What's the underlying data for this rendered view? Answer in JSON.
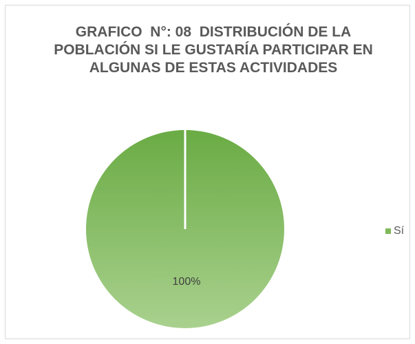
{
  "chart_data": {
    "type": "pie",
    "title": "GRAFICO  N°: 08  DISTRIBUCIÓN DE LA POBLACIÓN SI LE GUSTARÍA PARTICIPAR EN ALGUNAS DE ESTAS ACTIVIDADES",
    "categories": [
      "Sí"
    ],
    "values": [
      100
    ],
    "value_labels": [
      "100%"
    ],
    "colors": [
      "#7fb95a"
    ],
    "legend": "right"
  }
}
